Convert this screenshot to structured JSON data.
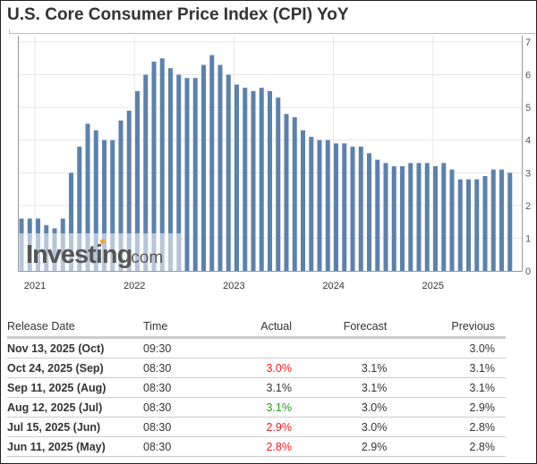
{
  "title": "U.S. Core Consumer Price Index (CPI) YoY",
  "watermark": "Investing.com",
  "colors": {
    "bar": "#5b82ad",
    "red": "#ee1c25",
    "green": "#2a9b24",
    "grid": "#e6e6e6"
  },
  "chart_data": {
    "type": "bar",
    "title": "",
    "xlabel": "",
    "ylabel": "",
    "ylim": [
      0,
      7
    ],
    "yticks": [
      "0",
      "1",
      "2",
      "3",
      "4",
      "5",
      "6",
      "7"
    ],
    "xticks": [
      "2021",
      "2022",
      "2023",
      "2024",
      "2025"
    ],
    "grid": true,
    "y_axis_position": "right",
    "categories": [
      "Oct 2020",
      "Nov 2020",
      "Dec 2020",
      "Jan 2021",
      "Feb 2021",
      "Mar 2021",
      "Apr 2021",
      "May 2021",
      "Jun 2021",
      "Jul 2021",
      "Aug 2021",
      "Sep 2021",
      "Oct 2021",
      "Nov 2021",
      "Dec 2021",
      "Jan 2022",
      "Feb 2022",
      "Mar 2022",
      "Apr 2022",
      "May 2022",
      "Jun 2022",
      "Jul 2022",
      "Aug 2022",
      "Sep 2022",
      "Oct 2022",
      "Nov 2022",
      "Dec 2022",
      "Jan 2023",
      "Feb 2023",
      "Mar 2023",
      "Apr 2023",
      "May 2023",
      "Jun 2023",
      "Jul 2023",
      "Aug 2023",
      "Sep 2023",
      "Oct 2023",
      "Nov 2023",
      "Dec 2023",
      "Jan 2024",
      "Feb 2024",
      "Mar 2024",
      "Apr 2024",
      "May 2024",
      "Jun 2024",
      "Jul 2024",
      "Aug 2024",
      "Sep 2024",
      "Oct 2024",
      "Nov 2024",
      "Dec 2024",
      "Jan 2025",
      "Feb 2025",
      "Mar 2025",
      "Apr 2025",
      "May 2025",
      "Jun 2025",
      "Jul 2025",
      "Aug 2025",
      "Sep 2025"
    ],
    "values": [
      1.6,
      1.6,
      1.6,
      1.4,
      1.3,
      1.6,
      3.0,
      3.8,
      4.5,
      4.3,
      4.0,
      4.0,
      4.6,
      4.9,
      5.5,
      6.0,
      6.4,
      6.5,
      6.2,
      6.0,
      5.9,
      5.9,
      6.3,
      6.6,
      6.3,
      6.0,
      5.7,
      5.6,
      5.5,
      5.6,
      5.5,
      5.3,
      4.8,
      4.7,
      4.3,
      4.1,
      4.0,
      4.0,
      3.9,
      3.9,
      3.8,
      3.8,
      3.6,
      3.4,
      3.3,
      3.2,
      3.2,
      3.3,
      3.3,
      3.3,
      3.2,
      3.3,
      3.1,
      2.8,
      2.8,
      2.8,
      2.9,
      3.1,
      3.1,
      3.0
    ]
  },
  "table": {
    "headers": {
      "date": "Release Date",
      "time": "Time",
      "actual": "Actual",
      "forecast": "Forecast",
      "previous": "Previous"
    },
    "rows": [
      {
        "date": "Nov 13, 2025 (Oct)",
        "time": "09:30",
        "actual": "",
        "actual_color": "",
        "forecast": "",
        "previous": "3.0%"
      },
      {
        "date": "Oct 24, 2025 (Sep)",
        "time": "08:30",
        "actual": "3.0%",
        "actual_color": "red",
        "forecast": "3.1%",
        "previous": "3.1%"
      },
      {
        "date": "Sep 11, 2025 (Aug)",
        "time": "08:30",
        "actual": "3.1%",
        "actual_color": "",
        "forecast": "3.1%",
        "previous": "3.1%"
      },
      {
        "date": "Aug 12, 2025 (Jul)",
        "time": "08:30",
        "actual": "3.1%",
        "actual_color": "green",
        "forecast": "3.0%",
        "previous": "2.9%"
      },
      {
        "date": "Jul 15, 2025 (Jun)",
        "time": "08:30",
        "actual": "2.9%",
        "actual_color": "red",
        "forecast": "3.0%",
        "previous": "2.8%"
      },
      {
        "date": "Jun 11, 2025 (May)",
        "time": "08:30",
        "actual": "2.8%",
        "actual_color": "red",
        "forecast": "2.9%",
        "previous": "2.8%"
      }
    ]
  }
}
